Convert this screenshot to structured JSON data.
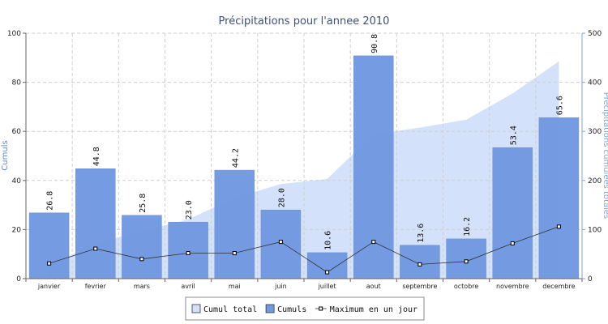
{
  "chart_data": {
    "type": "bar",
    "title": "Précipitations pour l'annee 2010",
    "ylabel": "Cumuls",
    "y2label": "Précipitations cumulées totales",
    "ylim": [
      0,
      100
    ],
    "y2lim": [
      0,
      500
    ],
    "yticks": [
      0,
      20,
      40,
      60,
      80,
      100
    ],
    "y2ticks": [
      0,
      100,
      200,
      300,
      400,
      500
    ],
    "grid": true,
    "legend_position": "bottom-center",
    "categories": [
      "janvier",
      "fevrier",
      "mars",
      "avril",
      "mai",
      "juin",
      "juillet",
      "aout",
      "septembre",
      "octobre",
      "novembre",
      "decembre"
    ],
    "series": [
      {
        "name": "Cumul total",
        "type": "area",
        "axis": "right",
        "color": "#d3e1fa",
        "values": [
          26.8,
          71.6,
          97.4,
          120.4,
          164.6,
          192.6,
          203.2,
          294.0,
          307.6,
          323.8,
          377.2,
          442.8
        ]
      },
      {
        "name": "Cumuls",
        "type": "bar",
        "axis": "left",
        "color": "#7199e1",
        "values": [
          26.8,
          44.8,
          25.8,
          23.0,
          44.2,
          28.0,
          10.6,
          90.8,
          13.6,
          16.2,
          53.4,
          65.6
        ],
        "data_labels": [
          "26.8",
          "44.8",
          "25.8",
          "23.0",
          "44.2",
          "28.0",
          "10.6",
          "90.8",
          "13.6",
          "16.2",
          "53.4",
          "65.6"
        ]
      },
      {
        "name": "Maximum en un jour",
        "type": "line",
        "axis": "left",
        "color": "#333333",
        "values": [
          6.2,
          12.2,
          8.0,
          10.4,
          10.4,
          15.0,
          2.6,
          15.0,
          5.8,
          7.0,
          14.4,
          21.2
        ]
      }
    ]
  }
}
